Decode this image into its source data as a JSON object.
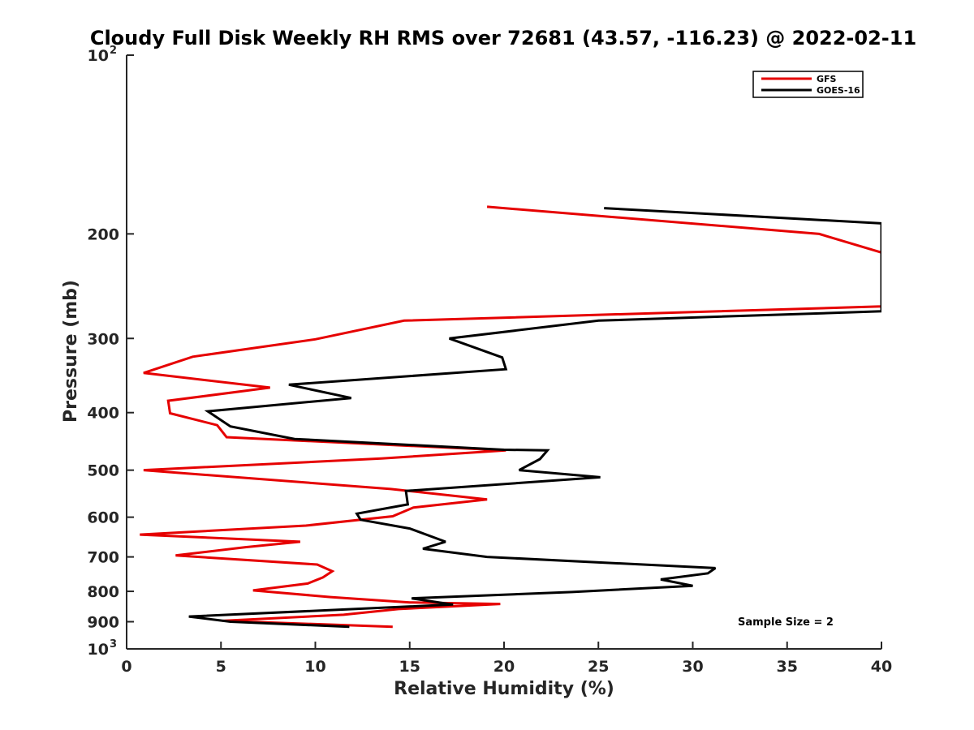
{
  "chart_data": {
    "type": "line",
    "title": "Cloudy Full Disk Weekly RH RMS over 72681 (43.57, -116.23) @ 2022-02-11",
    "xlabel": "Relative Humidity (%)",
    "ylabel": "Pressure (mb)",
    "xlim": [
      0,
      40
    ],
    "ylim": [
      100,
      1000
    ],
    "yscale": "log",
    "y_reversed": true,
    "grid": false,
    "legend_position": "top-right",
    "x_ticks": [
      "0",
      "5",
      "10",
      "15",
      "20",
      "25",
      "30",
      "35",
      "40"
    ],
    "x_tick_values": [
      0,
      5,
      10,
      15,
      20,
      25,
      30,
      35,
      40
    ],
    "y_ticks": [
      {
        "value": 100,
        "label": "10",
        "exp": "2"
      },
      {
        "value": 200,
        "label": "200",
        "exp": ""
      },
      {
        "value": 300,
        "label": "300",
        "exp": ""
      },
      {
        "value": 400,
        "label": "400",
        "exp": ""
      },
      {
        "value": 500,
        "label": "500",
        "exp": ""
      },
      {
        "value": 600,
        "label": "600",
        "exp": ""
      },
      {
        "value": 700,
        "label": "700",
        "exp": ""
      },
      {
        "value": 800,
        "label": "800",
        "exp": ""
      },
      {
        "value": 900,
        "label": "900",
        "exp": ""
      },
      {
        "value": 1000,
        "label": "10",
        "exp": "3"
      }
    ],
    "annotation": "Sample Size = 2",
    "series": [
      {
        "name": "GFS",
        "color": "#e60000",
        "points": [
          [
            19.1,
            180
          ],
          [
            36.7,
            200
          ],
          [
            40,
            215
          ],
          [
            40,
            265
          ],
          [
            14.7,
            280
          ],
          [
            10.0,
            301
          ],
          [
            3.5,
            322
          ],
          [
            0.9,
            343
          ],
          [
            7.6,
            363
          ],
          [
            2.2,
            382
          ],
          [
            2.3,
            401
          ],
          [
            4.8,
            420
          ],
          [
            5.3,
            440
          ],
          [
            20.1,
            463
          ],
          [
            13.5,
            478
          ],
          [
            0.9,
            500
          ],
          [
            14.0,
            538
          ],
          [
            19.1,
            560
          ],
          [
            15.2,
            578
          ],
          [
            14.1,
            598
          ],
          [
            9.5,
            620
          ],
          [
            0.7,
            642
          ],
          [
            9.2,
            660
          ],
          [
            6.3,
            674
          ],
          [
            2.6,
            696
          ],
          [
            10.1,
            721
          ],
          [
            10.9,
            740
          ],
          [
            10.4,
            758
          ],
          [
            9.6,
            776
          ],
          [
            6.7,
            797
          ],
          [
            10.8,
            818
          ],
          [
            15.0,
            835
          ],
          [
            19.8,
            840
          ],
          [
            14.4,
            857
          ],
          [
            11.5,
            876
          ],
          [
            5.1,
            897
          ],
          [
            14.1,
            918
          ]
        ]
      },
      {
        "name": "GOES-16",
        "color": "#000000",
        "points": [
          [
            25.3,
            181
          ],
          [
            40,
            192
          ],
          [
            40,
            270
          ],
          [
            25.0,
            280
          ],
          [
            17.1,
            300
          ],
          [
            19.9,
            323
          ],
          [
            20.1,
            338
          ],
          [
            8.6,
            359
          ],
          [
            11.9,
            378
          ],
          [
            4.3,
            398
          ],
          [
            5.5,
            422
          ],
          [
            8.9,
            443
          ],
          [
            20.0,
            462
          ],
          [
            22.3,
            463
          ],
          [
            21.9,
            479
          ],
          [
            20.8,
            500
          ],
          [
            25.1,
            514
          ],
          [
            14.8,
            542
          ],
          [
            14.9,
            571
          ],
          [
            12.2,
            592
          ],
          [
            12.4,
            606
          ],
          [
            15.0,
            627
          ],
          [
            16.9,
            660
          ],
          [
            15.7,
            678
          ],
          [
            19.1,
            700
          ],
          [
            31.2,
            731
          ],
          [
            30.8,
            746
          ],
          [
            28.3,
            764
          ],
          [
            30.0,
            783
          ],
          [
            23.6,
            802
          ],
          [
            15.1,
            822
          ],
          [
            17.3,
            842
          ],
          [
            3.3,
            882
          ],
          [
            5.5,
            900
          ],
          [
            11.8,
            918
          ]
        ]
      }
    ]
  }
}
